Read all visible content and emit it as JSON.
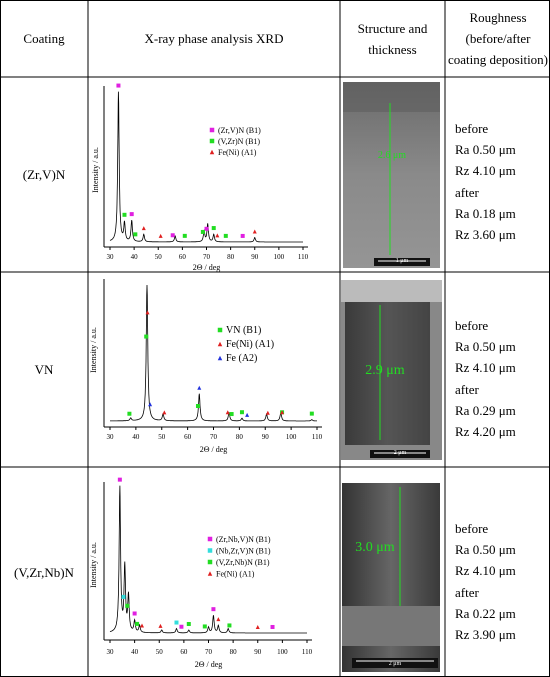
{
  "header": {
    "coating": "Coating",
    "xrd": "X-ray phase analysis XRD",
    "structure": "Structure and thickness",
    "roughness": "Roughness (before/after coating deposition)"
  },
  "rows": [
    {
      "coating": "(Zr,V)N",
      "xrd": {
        "type": "line",
        "xlabel": "2Θ / deg",
        "ylabel": "Intensity / a.u.",
        "xlim": [
          30,
          110
        ],
        "ylim": [
          0,
          100
        ],
        "xticks": [
          30,
          40,
          50,
          60,
          70,
          80,
          90,
          100,
          110
        ],
        "peaks": {
          "x": [
            33.5,
            36,
            39,
            44,
            57,
            69,
            70.5,
            73,
            90
          ],
          "values": [
            100,
            12,
            14,
            5,
            4,
            7,
            12,
            5,
            3
          ]
        },
        "series": [
          {
            "name": "(Zr,V)N (B1)",
            "color": "#e020e0",
            "marker": "square",
            "x": [
              33.5,
              39,
              56,
              70,
              85
            ]
          },
          {
            "name": "(V,Zr)N (B1)",
            "color": "#22dd22",
            "marker": "square",
            "x": [
              36,
              40.5,
              61,
              68.5,
              73,
              78
            ]
          },
          {
            "name": "Fe(Ni) (A1)",
            "color": "#e02020",
            "marker": "triangle",
            "x": [
              44,
              51,
              74.5,
              90
            ]
          }
        ]
      },
      "structure": {
        "thickness": "2.6 μm",
        "scale_bar": "1 μm"
      },
      "roughness": [
        "before",
        "Ra 0.50 μm",
        "Rz 4.10 μm",
        "after",
        "Ra 0.18 μm",
        "Rz 3.60 μm"
      ]
    },
    {
      "coating": "VN",
      "xrd": {
        "type": "line",
        "xlabel": "2Θ / deg",
        "ylabel": "Intensity / a.u.",
        "xlim": [
          30,
          110
        ],
        "ylim": [
          0,
          100
        ],
        "xticks": [
          30,
          40,
          50,
          60,
          70,
          80,
          90,
          100,
          110
        ],
        "peaks": {
          "x": [
            38,
            44.3,
            50.5,
            64.5,
            76,
            81,
            90.5,
            96,
            108
          ],
          "values": [
            2,
            100,
            5,
            20,
            6,
            2,
            5,
            6,
            1
          ]
        },
        "series": [
          {
            "name": "VN (B1)",
            "color": "#22dd22",
            "marker": "square",
            "x": [
              37.5,
              44,
              64,
              77,
              81,
              96.5,
              108
            ]
          },
          {
            "name": "Fe(Ni) (A1)",
            "color": "#e02020",
            "marker": "triangle",
            "x": [
              44.5,
              51,
              75.5,
              91,
              96.5
            ]
          },
          {
            "name": "Fe (A2)",
            "color": "#2233dd",
            "marker": "triangle",
            "x": [
              45.5,
              64.5,
              83
            ]
          }
        ]
      },
      "structure": {
        "thickness": "2.9 μm",
        "scale_bar": "2 μm"
      },
      "roughness": [
        "before",
        "Ra 0.50 μm",
        "Rz 4.10 μm",
        "after",
        "Ra 0.29 μm",
        "Rz 4.20 μm"
      ]
    },
    {
      "coating": "(V,Zr,Nb)N",
      "xrd": {
        "type": "line",
        "xlabel": "2Θ / deg",
        "ylabel": "Intensity / a.u.",
        "xlim": [
          30,
          110
        ],
        "ylim": [
          0,
          100
        ],
        "xticks": [
          30,
          40,
          50,
          60,
          70,
          80,
          90,
          100,
          110
        ],
        "peaks": {
          "x": [
            34,
            36,
            37.5,
            40,
            42,
            51,
            57,
            62,
            70,
            72,
            74,
            78
          ],
          "values": [
            100,
            45,
            25,
            8,
            5,
            2,
            3,
            2,
            4,
            12,
            5,
            3
          ]
        },
        "series": [
          {
            "name": "(Zr,Nb,V)N (B1)",
            "color": "#e020e0",
            "marker": "square",
            "x": [
              34,
              40,
              59,
              72,
              96
            ]
          },
          {
            "name": "(Nb,Zr,V)N (B1)",
            "color": "#33dddd",
            "marker": "square",
            "x": [
              35.5,
              57
            ]
          },
          {
            "name": "(V,Zr,Nb)N (B1)",
            "color": "#22dd22",
            "marker": "square",
            "x": [
              37,
              41,
              62,
              68.5,
              78.5
            ]
          },
          {
            "name": "Fe(Ni) (A1)",
            "color": "#e02020",
            "marker": "triangle",
            "x": [
              43,
              50.5,
              74,
              90
            ]
          }
        ]
      },
      "structure": {
        "thickness": "3.0 μm",
        "scale_bar": "2 μm"
      },
      "roughness": [
        "before",
        "Ra 0.50 μm",
        "Rz 4.10 μm",
        "after",
        "Ra 0.22 μm",
        "Rz 3.90 μm"
      ]
    }
  ]
}
